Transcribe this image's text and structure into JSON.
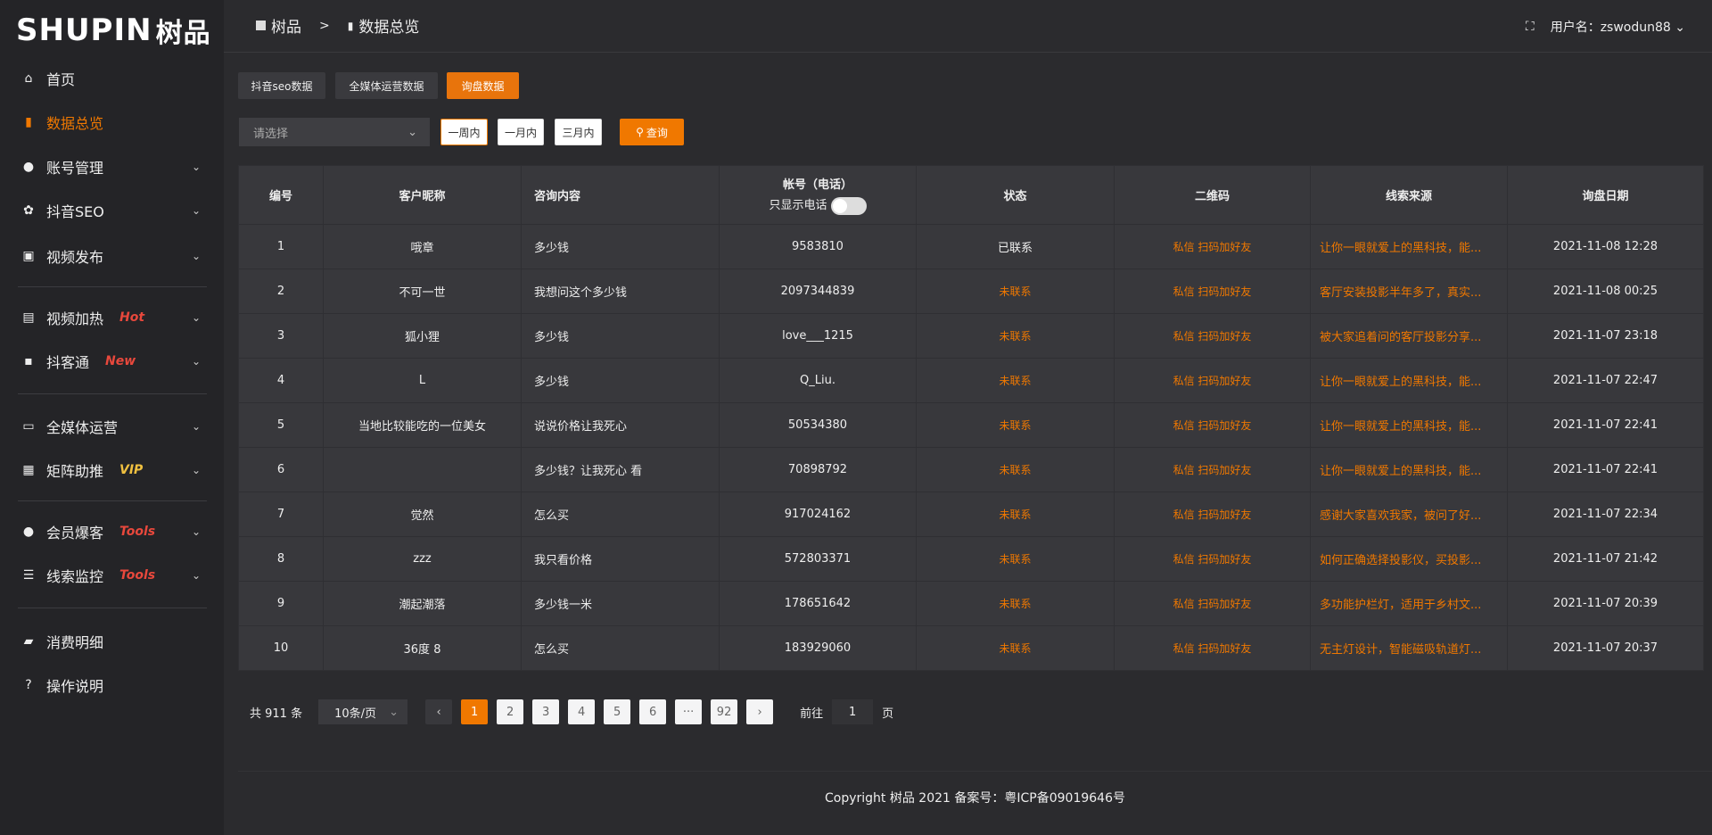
{
  "brand": {
    "logo": "SHUPIN",
    "logo_cn": "树品"
  },
  "sidebar": {
    "items": [
      {
        "label": "首页",
        "icon": "home-icon"
      },
      {
        "label": "数据总览",
        "icon": "bar-chart-icon",
        "active": true
      },
      {
        "label": "账号管理",
        "icon": "user-icon",
        "chevron": true
      },
      {
        "label": "抖音SEO",
        "icon": "gear-icon",
        "chevron": true
      },
      {
        "label": "视频发布",
        "icon": "video-icon",
        "chevron": true
      },
      {
        "label": "视频加热",
        "icon": "fire-icon",
        "tag": "Hot",
        "chevron": true
      },
      {
        "label": "抖客通",
        "icon": "chat-icon",
        "tag": "New",
        "chevron": true
      },
      {
        "label": "全媒体运营",
        "icon": "monitor-icon",
        "chevron": true
      },
      {
        "label": "矩阵助推",
        "icon": "grid-icon",
        "tag": "VIP",
        "chevron": true
      },
      {
        "label": "会员爆客",
        "icon": "user-icon",
        "tag": "Tools",
        "chevron": true
      },
      {
        "label": "线索监控",
        "icon": "sliders-icon",
        "tag": "Tools",
        "chevron": true
      },
      {
        "label": "消费明细",
        "icon": "wallet-icon"
      },
      {
        "label": "操作说明",
        "icon": "help-icon"
      }
    ],
    "colors": {
      "active": "#f07800",
      "hot": "#e8483c",
      "vip": "#f0c040"
    }
  },
  "header": {
    "crumb_root": "树品",
    "crumb_sep": ">",
    "crumb_current": "数据总览",
    "user_label": "用户名：zswodun88"
  },
  "tabs": [
    "抖音seo数据",
    "全媒体运营数据",
    "询盘数据"
  ],
  "filter": {
    "select_placeholder": "请选择",
    "ranges": [
      "一周内",
      "一月内",
      "三月内"
    ],
    "query": "查询"
  },
  "table": {
    "headers": [
      "编号",
      "客户昵称",
      "咨询内容",
      "帐号（电话）",
      "状态",
      "二维码",
      "线索来源",
      "询盘日期"
    ],
    "phone_toggle_label": "只显示电话",
    "rows": [
      [
        "1",
        "哦章",
        "多少钱",
        "9583810",
        "已联系",
        "私信 扫码加好友",
        "让你一眼就爱上的黑科技，能...",
        "2021-11-08 12:28"
      ],
      [
        "2",
        "不可一世",
        "我想问这个多少钱",
        "2097344839",
        "未联系",
        "私信 扫码加好友",
        "客厅安装投影半年多了，真实...",
        "2021-11-08 00:25"
      ],
      [
        "3",
        "狐小狸",
        "多少钱",
        "love___1215",
        "未联系",
        "私信 扫码加好友",
        "被大家追着问的客厅投影分享...",
        "2021-11-07 23:18"
      ],
      [
        "4",
        "L",
        "多少钱",
        "Q_Liu.",
        "未联系",
        "私信 扫码加好友",
        "让你一眼就爱上的黑科技，能...",
        "2021-11-07 22:47"
      ],
      [
        "5",
        "当地比较能吃的一位美女",
        "说说价格让我死心",
        "50534380",
        "未联系",
        "私信 扫码加好友",
        "让你一眼就爱上的黑科技，能...",
        "2021-11-07 22:41"
      ],
      [
        "6",
        "",
        "多少钱？让我死心 看",
        "70898792",
        "未联系",
        "私信 扫码加好友",
        "让你一眼就爱上的黑科技，能...",
        "2021-11-07 22:41"
      ],
      [
        "7",
        "觉然",
        "怎么买",
        "917024162",
        "未联系",
        "私信 扫码加好友",
        "感谢大家喜欢我家，被问了好...",
        "2021-11-07 22:34"
      ],
      [
        "8",
        "zzz",
        "我只看价格",
        "572803371",
        "未联系",
        "私信 扫码加好友",
        "如何正确选择投影仪，买投影...",
        "2021-11-07 21:42"
      ],
      [
        "9",
        "潮起潮落",
        "多少钱一米",
        "178651642",
        "未联系",
        "私信 扫码加好友",
        "多功能护栏灯，适用于乡村文...",
        "2021-11-07 20:39"
      ],
      [
        "10",
        "36度 8",
        "怎么买",
        "183929060",
        "未联系",
        "私信 扫码加好友",
        "无主灯设计，智能磁吸轨道灯...",
        "2021-11-07 20:37"
      ]
    ]
  },
  "pagination": {
    "total": "共 911 条",
    "page_size": "10条/页",
    "pages": [
      "1",
      "2",
      "3",
      "4",
      "5",
      "6",
      "···",
      "92"
    ],
    "current": "1",
    "goto_label": "前往",
    "goto_value": "1",
    "page_suffix": "页"
  },
  "footer": {
    "copyright": "Copyright 树品 2021 备案号：粤ICP备09019646号"
  }
}
